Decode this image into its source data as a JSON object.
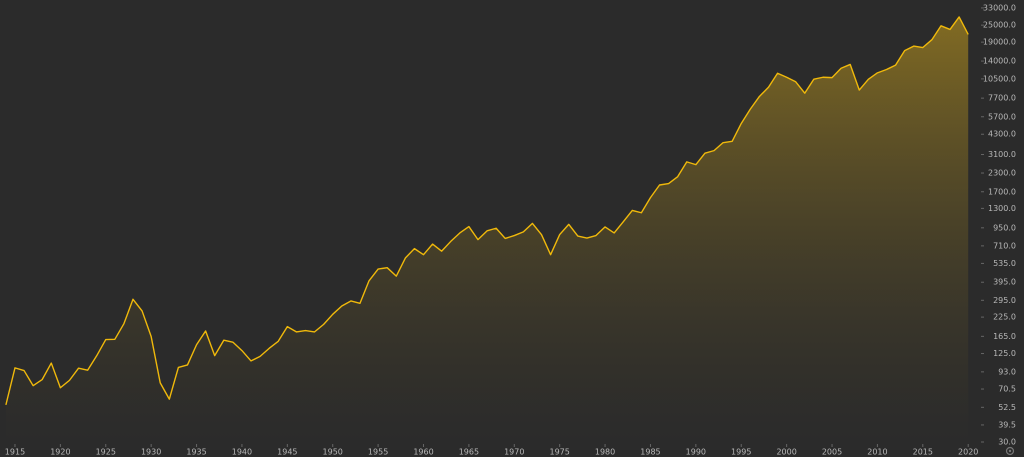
{
  "chart_data": {
    "type": "area",
    "yscale": "log",
    "color": "#f0b90b",
    "x": [
      1914,
      1915,
      1916,
      1917,
      1918,
      1919,
      1920,
      1921,
      1922,
      1923,
      1924,
      1925,
      1926,
      1927,
      1928,
      1929,
      1930,
      1931,
      1932,
      1933,
      1934,
      1935,
      1936,
      1937,
      1938,
      1939,
      1940,
      1941,
      1942,
      1943,
      1944,
      1945,
      1946,
      1947,
      1948,
      1949,
      1950,
      1951,
      1952,
      1953,
      1954,
      1955,
      1956,
      1957,
      1958,
      1959,
      1960,
      1961,
      1962,
      1963,
      1964,
      1965,
      1966,
      1967,
      1968,
      1969,
      1970,
      1971,
      1972,
      1973,
      1974,
      1975,
      1976,
      1977,
      1978,
      1979,
      1980,
      1981,
      1982,
      1983,
      1984,
      1985,
      1986,
      1987,
      1988,
      1989,
      1990,
      1991,
      1992,
      1993,
      1994,
      1995,
      1996,
      1997,
      1998,
      1999,
      2000,
      2001,
      2002,
      2003,
      2004,
      2005,
      2006,
      2007,
      2008,
      2009,
      2010,
      2011,
      2012,
      2013,
      2014,
      2015,
      2016,
      2017,
      2018,
      2019,
      2020
    ],
    "values": [
      54.6,
      99.2,
      95.0,
      74.4,
      82.2,
      107.2,
      72.0,
      81.1,
      98.7,
      95.5,
      120.5,
      156.7,
      157.2,
      202.4,
      300.0,
      248.5,
      164.6,
      77.9,
      59.9,
      99.9,
      104.0,
      144.1,
      179.9,
      120.9,
      155.0,
      150.2,
      131.1,
      111.0,
      119.4,
      135.9,
      152.3,
      192.9,
      177.2,
      181.2,
      177.3,
      200.1,
      235.4,
      269.2,
      291.9,
      280.9,
      404.4,
      488.4,
      499.5,
      435.7,
      583.7,
      679.4,
      615.9,
      731.1,
      652.1,
      762.9,
      874.1,
      969.3,
      785.7,
      905.1,
      943.8,
      800.4,
      838.9,
      890.2,
      1020.0,
      850.9,
      616.2,
      852.4,
      1004.7,
      831.2,
      805.0,
      838.7,
      964.0,
      875.0,
      1046.5,
      1258.6,
      1211.6,
      1546.7,
      1896.0,
      1938.8,
      2168.6,
      2753.2,
      2633.7,
      3168.8,
      3301.1,
      3754.1,
      3834.4,
      5117.1,
      6448.3,
      7908.3,
      9181.4,
      11497.1,
      10786.9,
      10021.5,
      8341.6,
      10453.9,
      10783.0,
      10717.5,
      12463.2,
      13264.8,
      8776.4,
      10428.1,
      11577.5,
      12217.6,
      13104.1,
      16576.7,
      17823.1,
      17425.0,
      19762.6,
      24719.2,
      23327.5,
      28538.4,
      21500
    ],
    "xlim": [
      1913.35,
      2021.3
    ],
    "xticks": [
      1915,
      1920,
      1925,
      1930,
      1935,
      1940,
      1945,
      1950,
      1955,
      1960,
      1965,
      1970,
      1975,
      1980,
      1985,
      1990,
      1995,
      2000,
      2005,
      2010,
      2015,
      2020
    ],
    "ylim": [
      30,
      37500
    ],
    "yticks": [
      {
        "value": 30,
        "label": "30.0"
      },
      {
        "value": 39.5,
        "label": "39.5"
      },
      {
        "value": 52.5,
        "label": "52.5"
      },
      {
        "value": 70.5,
        "label": "70.5"
      },
      {
        "value": 93,
        "label": "93.0"
      },
      {
        "value": 125,
        "label": "125.0"
      },
      {
        "value": 165,
        "label": "165.0"
      },
      {
        "value": 225,
        "label": "225.0"
      },
      {
        "value": 295,
        "label": "295.0"
      },
      {
        "value": 395,
        "label": "395.0"
      },
      {
        "value": 535,
        "label": "535.0"
      },
      {
        "value": 710,
        "label": "710.0"
      },
      {
        "value": 950,
        "label": "950.0"
      },
      {
        "value": 1300,
        "label": "1300.0"
      },
      {
        "value": 1700,
        "label": "1700.0"
      },
      {
        "value": 2300,
        "label": "2300.0"
      },
      {
        "value": 3100,
        "label": "3100.0"
      },
      {
        "value": 4300,
        "label": "4300.0"
      },
      {
        "value": 5700,
        "label": "5700.0"
      },
      {
        "value": 7700,
        "label": "7700.0"
      },
      {
        "value": 10500,
        "label": "10500.0"
      },
      {
        "value": 14000,
        "label": "14000.0"
      },
      {
        "value": 19000,
        "label": "19000.0"
      },
      {
        "value": 25000,
        "label": "25000.0"
      },
      {
        "value": 33000,
        "label": "33000.0"
      }
    ]
  }
}
